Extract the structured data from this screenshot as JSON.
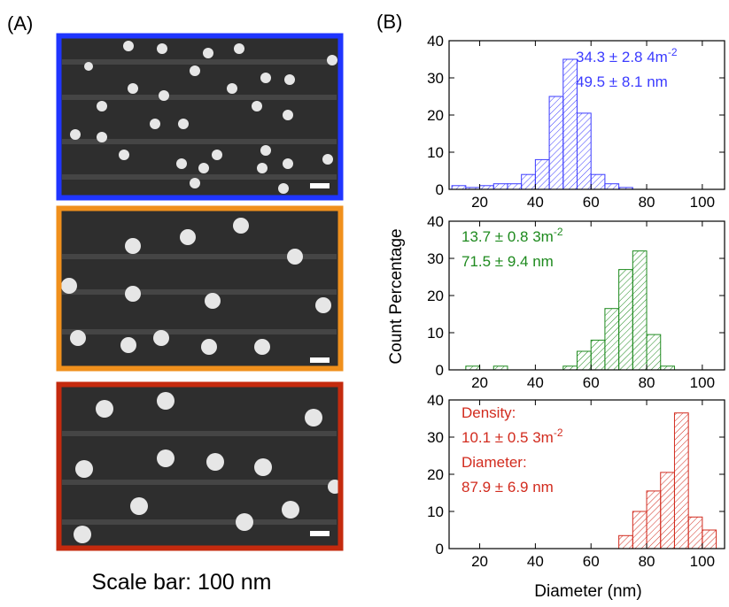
{
  "panel_a": {
    "label": "(A)",
    "caption": "Scale bar: 100 nm"
  },
  "panel_b": {
    "label": "(B)",
    "ylabel": "Count Percentage",
    "xlabel": "Diameter (nm)"
  },
  "chart_data": [
    {
      "type": "histogram",
      "color": "#3b3bff",
      "bins": [
        10,
        15,
        20,
        25,
        30,
        35,
        40,
        45,
        50,
        55,
        60,
        65,
        70,
        75
      ],
      "values": [
        1,
        0.5,
        1,
        1.5,
        1.5,
        4,
        8,
        25,
        35,
        20.5,
        4,
        1.5,
        0.5
      ],
      "xlim": [
        9,
        108
      ],
      "ylim": [
        0,
        40
      ],
      "xticks": [
        20,
        40,
        60,
        80,
        100
      ],
      "yticks": [
        0,
        10,
        20,
        30,
        40
      ],
      "annotations": [
        {
          "text": "34.3 ± 2.8 4m",
          "sup": "-2"
        },
        {
          "text": "49.5 ± 8.1 nm"
        }
      ]
    },
    {
      "type": "histogram",
      "color": "#1e8a1e",
      "bins": [
        15,
        20,
        25,
        30,
        35,
        40,
        45,
        50,
        55,
        60,
        65,
        70,
        75,
        80,
        85,
        90
      ],
      "values": [
        1,
        0,
        1,
        0,
        0,
        0,
        0,
        1,
        5,
        8,
        16.5,
        27,
        32,
        9.5,
        1
      ],
      "xlim": [
        9,
        108
      ],
      "ylim": [
        0,
        40
      ],
      "xticks": [
        20,
        40,
        60,
        80,
        100
      ],
      "yticks": [
        0,
        10,
        20,
        30,
        40
      ],
      "annotations": [
        {
          "text": "13.7 ± 0.8 3m",
          "sup": "-2"
        },
        {
          "text": "71.5 ± 9.4 nm"
        }
      ]
    },
    {
      "type": "histogram",
      "color": "#d22b1e",
      "bins": [
        70,
        75,
        80,
        85,
        90,
        95,
        100,
        105
      ],
      "values": [
        3.5,
        10,
        15.5,
        20.5,
        36.5,
        8.5,
        5
      ],
      "xlim": [
        9,
        108
      ],
      "ylim": [
        0,
        40
      ],
      "xticks": [
        20,
        40,
        60,
        80,
        100
      ],
      "yticks": [
        0,
        10,
        20,
        30,
        40
      ],
      "annotations": [
        {
          "text": "Density:"
        },
        {
          "text": "10.1 ± 0.5 3m",
          "sup": "-2"
        },
        {
          "text": "Diameter:"
        },
        {
          "text": "87.9 ± 6.9 nm"
        }
      ]
    }
  ]
}
